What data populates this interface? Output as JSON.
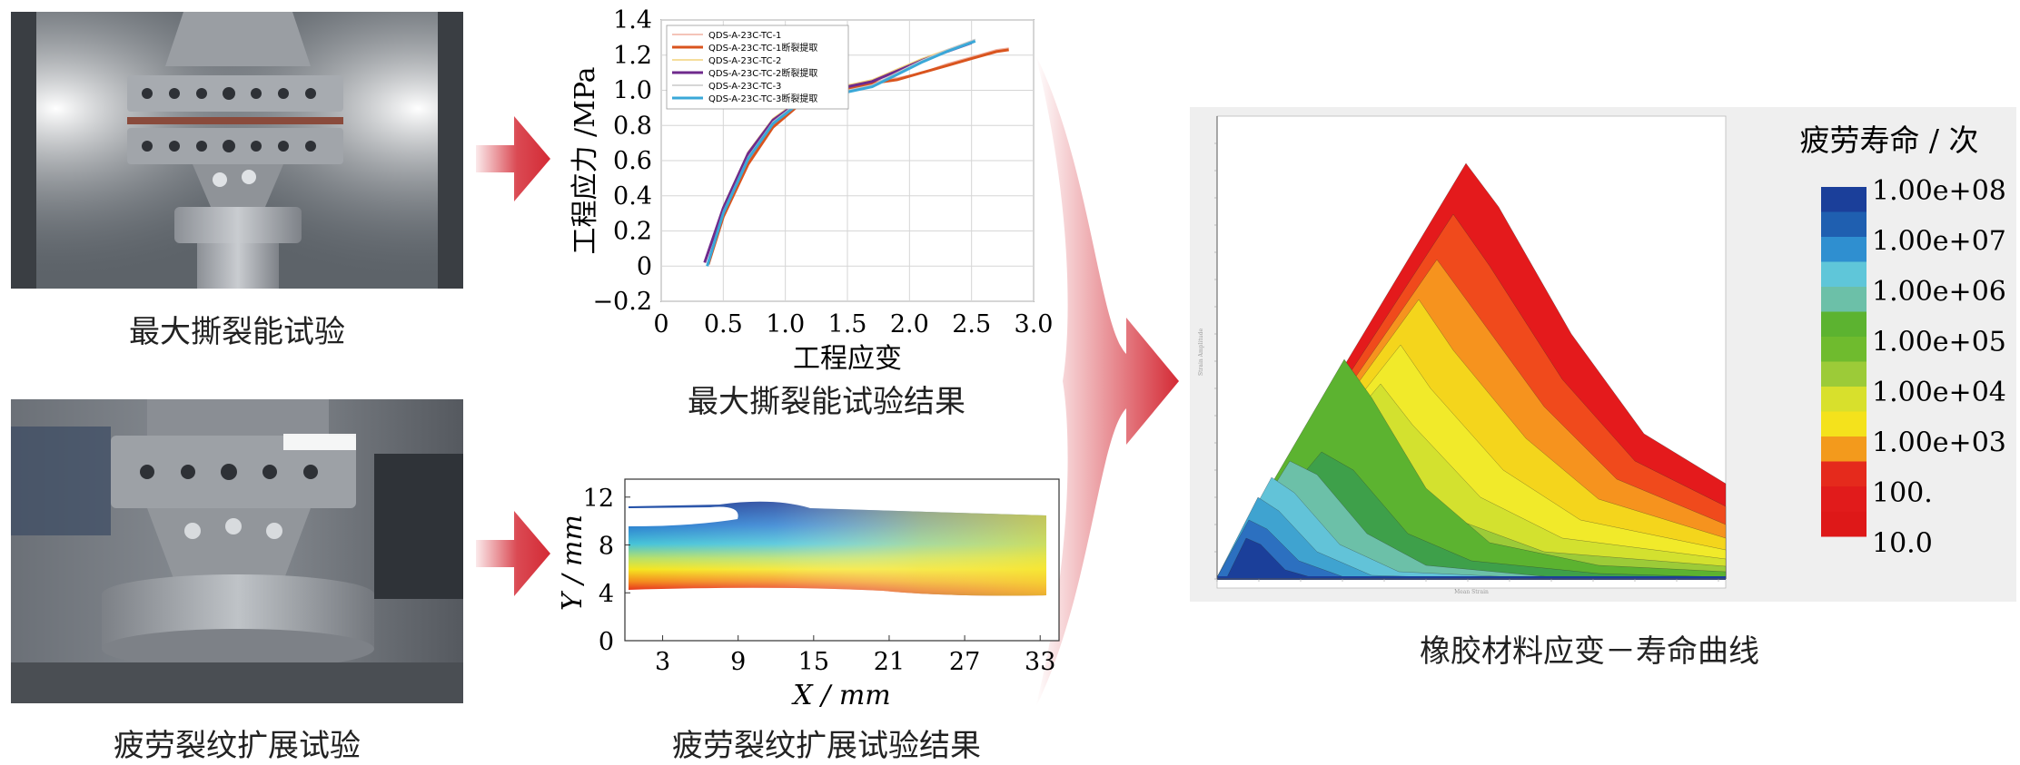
{
  "captions": {
    "tear_test": "最大撕裂能试验",
    "crack_test": "疲劳裂纹扩展试验",
    "tear_result": "最大撕裂能试验结果",
    "crack_result": "疲劳裂纹扩展试验结果",
    "strain_life": "橡胶材料应变－寿命曲线"
  },
  "colors": {
    "arrow": "#d42a35",
    "sn_red": "#e31b1b",
    "sn_orange": "#f39a1c",
    "sn_yellow": "#f1e51a",
    "sn_green": "#5fb42e",
    "sn_cyan": "#5fc6d9",
    "sn_blue": "#1b4fa3"
  },
  "chart_data": [
    {
      "type": "line",
      "xlabel": "工程应变",
      "ylabel": "工程应力 /MPa",
      "xlim": [
        0,
        3.0
      ],
      "ylim": [
        -0.2,
        1.4
      ],
      "xticks": [
        "0",
        "0.5",
        "1.0",
        "1.5",
        "2.0",
        "2.5",
        "3.0"
      ],
      "yticks": [
        "−0.2",
        "0",
        "0.2",
        "0.4",
        "0.6",
        "0.8",
        "1.0",
        "1.2",
        "1.4"
      ],
      "grid": true,
      "legend_position": "top-left",
      "series": [
        {
          "name": "QDS-A-23C-TC-1",
          "color": "#f0b0a0",
          "x": [
            0.38,
            0.5,
            0.7,
            0.9,
            1.1,
            1.3,
            1.5,
            1.7,
            1.9,
            2.1,
            2.3,
            2.5,
            2.7,
            2.8
          ],
          "y": [
            0.02,
            0.3,
            0.6,
            0.8,
            0.92,
            0.99,
            1.02,
            1.05,
            1.07,
            1.1,
            1.15,
            1.19,
            1.23,
            1.24
          ]
        },
        {
          "name": "QDS-A-23C-TC-1断裂提取",
          "color": "#d9541e",
          "x": [
            0.38,
            0.5,
            0.7,
            0.9,
            1.1,
            1.3,
            1.5,
            1.7,
            1.9,
            2.1,
            2.3,
            2.5,
            2.7,
            2.8
          ],
          "y": [
            0.01,
            0.28,
            0.58,
            0.79,
            0.91,
            0.98,
            1.01,
            1.04,
            1.06,
            1.1,
            1.14,
            1.18,
            1.22,
            1.23
          ]
        },
        {
          "name": "QDS-A-23C-TC-2",
          "color": "#f2d27a",
          "x": [
            0.35,
            0.5,
            0.7,
            0.9,
            1.1,
            1.3,
            1.5,
            1.7,
            1.9,
            2.1,
            2.3,
            2.5
          ],
          "y": [
            0.02,
            0.34,
            0.65,
            0.84,
            0.94,
            1.0,
            1.03,
            1.06,
            1.12,
            1.18,
            1.23,
            1.28
          ]
        },
        {
          "name": "QDS-A-23C-TC-2断裂提取",
          "color": "#6f2a8c",
          "x": [
            0.35,
            0.5,
            0.7,
            0.9,
            1.1,
            1.3,
            1.5,
            1.7,
            1.9,
            2.1,
            2.3,
            2.5
          ],
          "y": [
            0.02,
            0.33,
            0.64,
            0.83,
            0.93,
            0.99,
            1.02,
            1.05,
            1.11,
            1.17,
            1.22,
            1.27
          ]
        },
        {
          "name": "QDS-A-23C-TC-3",
          "color": "#c9c9c9",
          "x": [
            0.37,
            0.5,
            0.7,
            0.9,
            1.1,
            1.3,
            1.5,
            1.7,
            1.9,
            2.1,
            2.3,
            2.53
          ],
          "y": [
            0.01,
            0.31,
            0.62,
            0.82,
            0.93,
            0.98,
            1.0,
            1.03,
            1.1,
            1.17,
            1.23,
            1.29
          ]
        },
        {
          "name": "QDS-A-23C-TC-3断裂提取",
          "color": "#3aa8d8",
          "x": [
            0.37,
            0.5,
            0.7,
            0.9,
            1.1,
            1.3,
            1.5,
            1.7,
            1.9,
            2.1,
            2.3,
            2.53
          ],
          "y": [
            0.0,
            0.3,
            0.61,
            0.81,
            0.92,
            0.97,
            0.99,
            1.02,
            1.09,
            1.16,
            1.22,
            1.28
          ]
        }
      ]
    },
    {
      "type": "heatmap",
      "xlabel": "X / mm",
      "ylabel": "Y / mm",
      "xticks": [
        "3",
        "9",
        "15",
        "21",
        "27",
        "33"
      ],
      "yticks": [
        "0",
        "4",
        "8",
        "12"
      ]
    },
    {
      "type": "heatmap",
      "legend_title": "疲劳寿命 / 次",
      "legend_position": "right",
      "levels": [
        "1.00e+08",
        "1.00e+07",
        "1.00e+06",
        "1.00e+05",
        "1.00e+04",
        "1.00e+03",
        "100.",
        "10.0"
      ]
    }
  ]
}
